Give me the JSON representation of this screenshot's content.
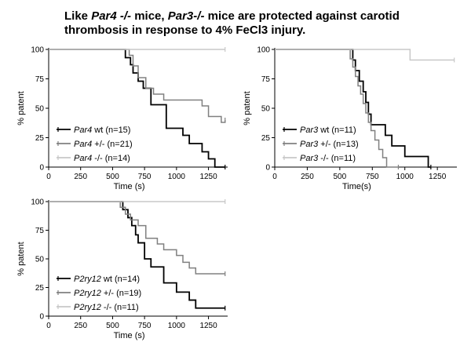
{
  "title": {
    "w1": "Like ",
    "i1": "Par4 -/-",
    "w2": " mice, ",
    "i2": "Par3-/-",
    "w3": " mice are protected against carotid",
    "line2": "thrombosis in response to 4% FeCl3 injury."
  },
  "chart_data": [
    {
      "type": "line",
      "step": true,
      "xlabel": "Time (s)",
      "ylabel": "% patent",
      "xlim": [
        0,
        1400
      ],
      "ylim": [
        0,
        100
      ],
      "xticks": [
        0,
        250,
        500,
        750,
        1000,
        1250
      ],
      "yticks": [
        0,
        25,
        50,
        75,
        100
      ],
      "legend_position": "bottom-left",
      "series": [
        {
          "name": "Par4",
          "label_suffix": "wt (n=15)",
          "color": "#000000",
          "x": [
            0,
            550,
            600,
            640,
            660,
            700,
            740,
            800,
            900,
            920,
            1000,
            1050,
            1100,
            1150,
            1200,
            1250,
            1300,
            1380
          ],
          "y": [
            100,
            100,
            93,
            87,
            80,
            73,
            67,
            53,
            53,
            33,
            33,
            27,
            20,
            20,
            13,
            7,
            0,
            0
          ]
        },
        {
          "name": "Par4",
          "label_suffix": "+/- (n=21)",
          "color": "#808080",
          "x": [
            0,
            600,
            630,
            660,
            700,
            760,
            820,
            900,
            1000,
            1100,
            1200,
            1250,
            1280,
            1350,
            1370,
            1380
          ],
          "y": [
            100,
            100,
            95,
            86,
            76,
            67,
            62,
            57,
            57,
            57,
            52,
            43,
            43,
            38,
            38,
            40
          ]
        },
        {
          "name": "Par4",
          "label_suffix": "-/- (n=14)",
          "color": "#c8c8c8",
          "x": [
            0,
            1380
          ],
          "y": [
            100,
            100
          ]
        }
      ]
    },
    {
      "type": "line",
      "step": true,
      "xlabel": "Time(s)",
      "ylabel": "% patent",
      "xlim": [
        0,
        1400
      ],
      "ylim": [
        0,
        100
      ],
      "xticks": [
        0,
        250,
        500,
        750,
        1000,
        1250
      ],
      "yticks": [
        0,
        25,
        50,
        75,
        100
      ],
      "legend_position": "bottom-left",
      "series": [
        {
          "name": "Par3",
          "label_suffix": "wt (n=11)",
          "color": "#000000",
          "x": [
            0,
            580,
            600,
            620,
            650,
            680,
            700,
            720,
            740,
            800,
            850,
            900,
            1000,
            1100,
            1180,
            1200
          ],
          "y": [
            100,
            100,
            91,
            82,
            73,
            64,
            55,
            45,
            36,
            36,
            27,
            18,
            9,
            9,
            0,
            0
          ]
        },
        {
          "name": "Par3",
          "label_suffix": "+/- (n=13)",
          "color": "#808080",
          "x": [
            0,
            560,
            580,
            600,
            620,
            640,
            660,
            680,
            700,
            720,
            740,
            770,
            800,
            830,
            860,
            950
          ],
          "y": [
            100,
            100,
            92,
            85,
            77,
            69,
            62,
            54,
            46,
            38,
            31,
            23,
            15,
            8,
            0,
            0
          ]
        },
        {
          "name": "Par3",
          "label_suffix": "-/- (n=11)",
          "color": "#c8c8c8",
          "x": [
            0,
            1020,
            1040,
            1380
          ],
          "y": [
            100,
            100,
            91,
            91
          ]
        }
      ]
    },
    {
      "type": "line",
      "step": true,
      "xlabel": "Time (s)",
      "ylabel": "% patent",
      "xlim": [
        0,
        1400
      ],
      "ylim": [
        0,
        100
      ],
      "xticks": [
        0,
        250,
        500,
        750,
        1000,
        1250
      ],
      "yticks": [
        0,
        25,
        50,
        75,
        100
      ],
      "legend_position": "bottom-left",
      "series": [
        {
          "name": "P2ry12",
          "label_suffix": "wt (n=14)",
          "color": "#000000",
          "x": [
            0,
            530,
            580,
            620,
            650,
            680,
            700,
            750,
            800,
            900,
            1000,
            1050,
            1100,
            1150,
            1300,
            1380
          ],
          "y": [
            100,
            100,
            93,
            86,
            79,
            71,
            64,
            50,
            43,
            29,
            21,
            21,
            14,
            7,
            7,
            7
          ]
        },
        {
          "name": "P2ry12",
          "label_suffix": "+/- (n=19)",
          "color": "#808080",
          "x": [
            0,
            500,
            560,
            600,
            640,
            700,
            760,
            850,
            900,
            1000,
            1050,
            1100,
            1150,
            1200,
            1380
          ],
          "y": [
            100,
            100,
            95,
            89,
            84,
            79,
            68,
            63,
            58,
            53,
            47,
            42,
            37,
            37,
            37
          ]
        },
        {
          "name": "P2ry12",
          "label_suffix": "-/- (n=11)",
          "color": "#c8c8c8",
          "x": [
            0,
            1380
          ],
          "y": [
            100,
            100
          ]
        }
      ]
    }
  ]
}
